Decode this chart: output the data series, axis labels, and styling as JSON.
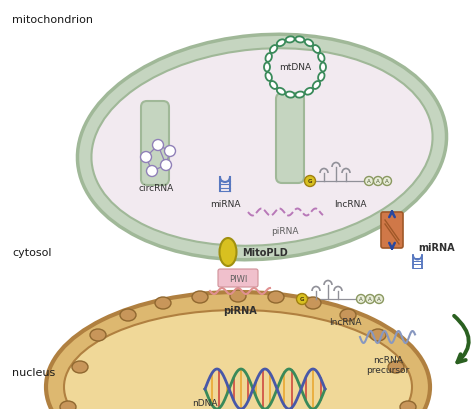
{
  "bg_color": "#ffffff",
  "mito_outer_color": "#c5d5c0",
  "mito_inner_color": "#f2eaf0",
  "nucleus_outer_color": "#ddb870",
  "nucleus_inner_color": "#f0d898",
  "nucleus_pore_color": "#c8965a",
  "mtdna_color": "#3a8a5a",
  "circrna_color": "#9080b8",
  "mirna_color": "#5878c0",
  "lncrna_color": "#909098",
  "pirna_color": "#b878b8",
  "mitopld_color": "#d8c020",
  "piwi_color": "#f0a8b8",
  "arrow_mito_color": "#2848a0",
  "arrow_nucleus_color": "#2a6020",
  "transport_color": "#c87040",
  "labels": {
    "mitochondrion": "mitochondrion",
    "cytosol": "cytosol",
    "nucleus": "nucleus",
    "mtdna": "mtDNA",
    "circrna": "circRNA",
    "mirna_inner": "miRNA",
    "lncrna_inner": "lncRNA",
    "pirna_inner": "piRNA",
    "mitopld": "MitoPLD",
    "piwi": "PIWI",
    "pirna_cyto": "piRNA",
    "mirna_outer": "miRNA",
    "lncrna_cyto": "lncRNA",
    "ncrna": "ncRNA\nprecursor",
    "ndna": "nDNA"
  }
}
